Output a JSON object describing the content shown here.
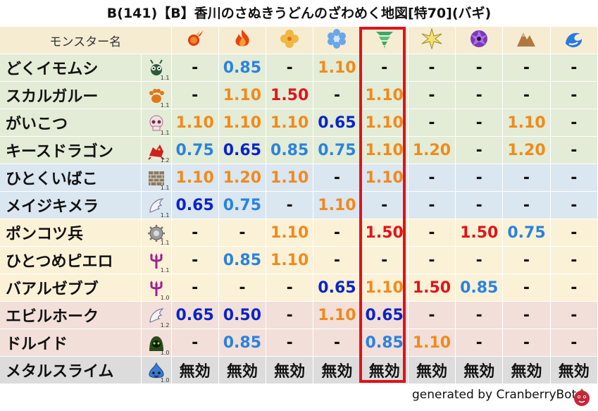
{
  "title": "B(141)【B】香川のさぬきうどんのざわめく地図[特70](バギ)",
  "header": {
    "monster_name_label": "モンスター名",
    "elements": [
      "fire-icon",
      "flame-icon",
      "clover-icon",
      "ice-crystal-icon",
      "tornado-icon",
      "light-burst-icon",
      "dark-swirl-icon",
      "earth-mountain-icon",
      "water-wave-icon"
    ]
  },
  "highlighted_column": 4,
  "rows": [
    {
      "name": "どくイモムシ",
      "icon": "bug-icon",
      "mult": "1.1",
      "bg": "green",
      "values": [
        "-",
        "0.85",
        "-",
        "1.10",
        "-",
        "-",
        "-",
        "-",
        "-"
      ],
      "colors": [
        "d",
        "b",
        "d",
        "o",
        "d",
        "d",
        "d",
        "d",
        "d"
      ]
    },
    {
      "name": "スカルガルー",
      "icon": "paw-icon",
      "mult": "1.1",
      "bg": "green",
      "values": [
        "-",
        "1.10",
        "1.50",
        "-",
        "1.10",
        "-",
        "-",
        "-",
        "-"
      ],
      "colors": [
        "d",
        "o",
        "r",
        "d",
        "o",
        "d",
        "d",
        "d",
        "d"
      ]
    },
    {
      "name": "がいこつ",
      "icon": "skull-icon",
      "mult": "1.1",
      "bg": "green",
      "values": [
        "1.10",
        "1.10",
        "1.10",
        "0.65",
        "1.10",
        "-",
        "-",
        "1.10",
        "-"
      ],
      "colors": [
        "o",
        "o",
        "o",
        "n",
        "o",
        "d",
        "d",
        "o",
        "d"
      ]
    },
    {
      "name": "キースドラゴン",
      "icon": "dragon-icon",
      "mult": "1.2",
      "bg": "green",
      "values": [
        "0.75",
        "0.65",
        "0.85",
        "0.75",
        "1.10",
        "1.20",
        "-",
        "1.20",
        "-"
      ],
      "colors": [
        "b",
        "n",
        "b",
        "b",
        "o",
        "o",
        "d",
        "o",
        "d"
      ]
    },
    {
      "name": "ひとくいばこ",
      "icon": "brick-icon",
      "mult": "1.1",
      "bg": "blue",
      "values": [
        "1.10",
        "1.20",
        "1.10",
        "-",
        "1.10",
        "-",
        "-",
        "-",
        "-"
      ],
      "colors": [
        "o",
        "o",
        "o",
        "d",
        "o",
        "d",
        "d",
        "d",
        "d"
      ]
    },
    {
      "name": "メイジキメラ",
      "icon": "wing-icon",
      "mult": "1.1",
      "bg": "blue",
      "values": [
        "0.65",
        "0.75",
        "-",
        "1.10",
        "-",
        "-",
        "-",
        "-",
        "-"
      ],
      "colors": [
        "n",
        "b",
        "d",
        "o",
        "d",
        "d",
        "d",
        "d",
        "d"
      ]
    },
    {
      "name": "ポンコツ兵",
      "icon": "gear-icon",
      "mult": "1.1",
      "bg": "yellow",
      "values": [
        "-",
        "-",
        "1.10",
        "-",
        "1.50",
        "-",
        "1.50",
        "0.75",
        "-"
      ],
      "colors": [
        "d",
        "d",
        "o",
        "d",
        "r",
        "d",
        "r",
        "b",
        "d"
      ]
    },
    {
      "name": "ひとつめピエロ",
      "icon": "trident-icon",
      "mult": "1.1",
      "bg": "yellow",
      "values": [
        "-",
        "0.85",
        "1.10",
        "-",
        "-",
        "-",
        "-",
        "-",
        "-"
      ],
      "colors": [
        "d",
        "b",
        "o",
        "d",
        "d",
        "d",
        "d",
        "d",
        "d"
      ]
    },
    {
      "name": "バアルゼブブ",
      "icon": "trident-icon",
      "mult": "1.0",
      "bg": "yellow",
      "values": [
        "-",
        "-",
        "-",
        "0.65",
        "1.10",
        "1.50",
        "0.85",
        "-",
        "-"
      ],
      "colors": [
        "d",
        "d",
        "d",
        "n",
        "o",
        "r",
        "b",
        "d",
        "d"
      ]
    },
    {
      "name": "エビルホーク",
      "icon": "wing-icon",
      "mult": "1.2",
      "bg": "pink",
      "values": [
        "0.65",
        "0.50",
        "-",
        "1.10",
        "0.65",
        "-",
        "-",
        "-",
        "-"
      ],
      "colors": [
        "n",
        "n",
        "d",
        "o",
        "n",
        "d",
        "d",
        "d",
        "d"
      ]
    },
    {
      "name": "ドルイド",
      "icon": "hood-icon",
      "mult": "1.0",
      "bg": "pink",
      "values": [
        "-",
        "0.85",
        "-",
        "-",
        "0.85",
        "1.10",
        "-",
        "-",
        "-"
      ],
      "colors": [
        "d",
        "b",
        "d",
        "d",
        "b",
        "o",
        "d",
        "d",
        "d"
      ]
    },
    {
      "name": "メタルスライム",
      "icon": "slime-icon",
      "mult": "1.0",
      "bg": "gray",
      "values": [
        "無効",
        "無効",
        "無効",
        "無効",
        "無効",
        "無効",
        "無効",
        "無効",
        "無効"
      ],
      "colors": [
        "i",
        "i",
        "i",
        "i",
        "i",
        "i",
        "i",
        "i",
        "i"
      ]
    }
  ],
  "footer": {
    "text": "generated by CranberryBot",
    "logo": "cranberry-logo-icon"
  }
}
